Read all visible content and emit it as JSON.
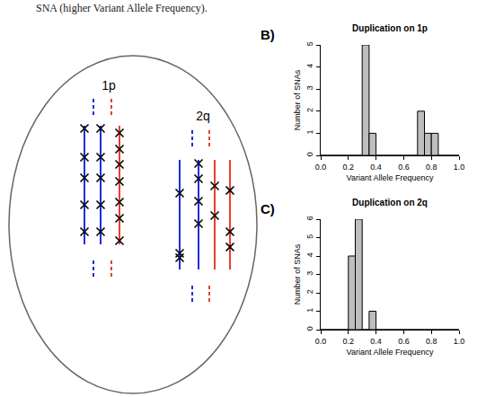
{
  "caption": "SNA (higher Variant Allele Frequency).",
  "diagram": {
    "labels": [
      "1p",
      "2q"
    ]
  },
  "chart_data": [
    {
      "type": "histogram",
      "panel": "B)",
      "title": "Duplication on 1p",
      "x_label": "Variant Allele Frequency",
      "y_label": "Number of SNAs",
      "bins": [
        0,
        0.05,
        0.1,
        0.15,
        0.2,
        0.25,
        0.3,
        0.35,
        0.4,
        0.45,
        0.5,
        0.55,
        0.6,
        0.65,
        0.7,
        0.75,
        0.8,
        0.85,
        0.9,
        0.95,
        1
      ],
      "counts": [
        0,
        0,
        0,
        0,
        0,
        0,
        5,
        1,
        0,
        0,
        0,
        0,
        0,
        0,
        2,
        1,
        1,
        0,
        0,
        0
      ],
      "color": "#bebebe",
      "xlim": [
        0,
        1
      ],
      "xticks": [
        {
          "value": 0,
          "label": "0.0"
        },
        0.2,
        0.4,
        0.6,
        0.8,
        {
          "value": 1,
          "label": "1.0"
        }
      ],
      "ylim": [
        0,
        5
      ],
      "yticks": [
        0,
        1,
        2,
        3,
        4,
        5
      ],
      "grid": false
    },
    {
      "type": "histogram",
      "panel": "C)",
      "title": "Duplication on 2q",
      "x_label": "Variant Allele Frequency",
      "y_label": "Number of SNAs",
      "bins": [
        0,
        0.05,
        0.1,
        0.15,
        0.2,
        0.25,
        0.3,
        0.35,
        0.4,
        0.45,
        0.5,
        0.55,
        0.6,
        0.65,
        0.7,
        0.75,
        0.8,
        0.85,
        0.9,
        0.95,
        1
      ],
      "counts": [
        0,
        0,
        0,
        0,
        4,
        6,
        0,
        1,
        0,
        0,
        0,
        0,
        0,
        0,
        0,
        0,
        0,
        0,
        0,
        0
      ],
      "color": "#bebebe",
      "xlim": [
        0,
        1
      ],
      "xticks": [
        {
          "value": 0,
          "label": "0.0"
        },
        0.2,
        0.4,
        0.6,
        0.8,
        {
          "value": 1,
          "label": "1.0"
        }
      ],
      "ylim": [
        0,
        6
      ],
      "yticks": [
        0,
        1,
        2,
        3,
        4,
        5,
        6
      ],
      "grid": false
    }
  ]
}
